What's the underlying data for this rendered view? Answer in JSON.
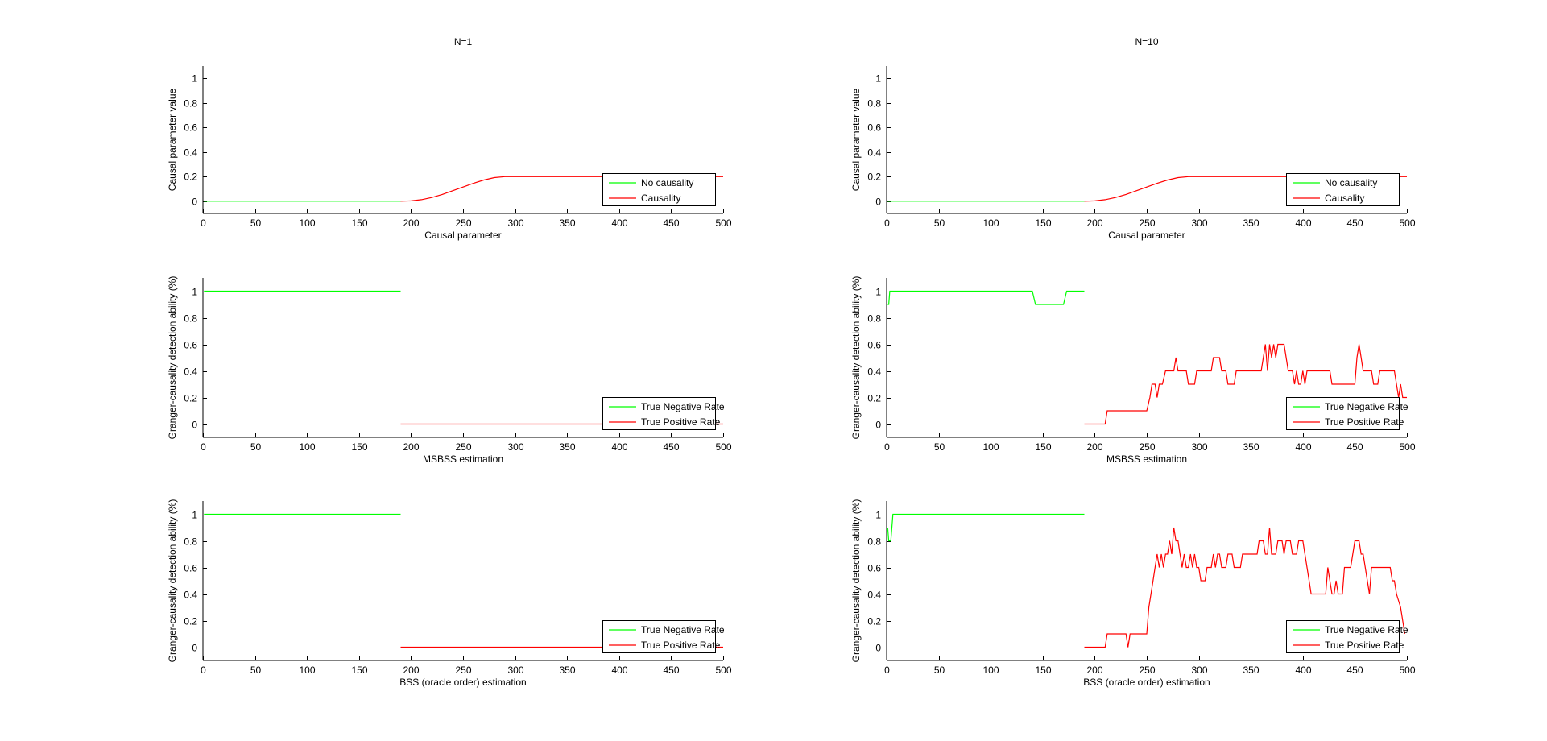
{
  "colors": {
    "green": "#00ff00",
    "red": "#ff0000",
    "axis": "#000000",
    "background": "#ffffff"
  },
  "chart_data": [
    {
      "id": "n1-causal",
      "type": "line",
      "title": "N=1",
      "xlabel": "Causal parameter",
      "ylabel": "Causal parameter value",
      "xlim": [
        0,
        500
      ],
      "ylim": [
        -0.1,
        1.1
      ],
      "xticks": [
        0,
        50,
        100,
        150,
        200,
        250,
        300,
        350,
        400,
        450,
        500
      ],
      "yticks": [
        0,
        0.2,
        0.4,
        0.6,
        0.8,
        1
      ],
      "legend_position": "bottom-right",
      "series": [
        {
          "name": "No causality",
          "color": "green",
          "points": [
            [
              1,
              0
            ],
            [
              190,
              0
            ]
          ]
        },
        {
          "name": "Causality",
          "color": "red",
          "points": [
            [
              190,
              0
            ],
            [
              200,
              0.002
            ],
            [
              210,
              0.012
            ],
            [
              220,
              0.03
            ],
            [
              230,
              0.055
            ],
            [
              240,
              0.085
            ],
            [
              250,
              0.115
            ],
            [
              260,
              0.145
            ],
            [
              270,
              0.172
            ],
            [
              280,
              0.192
            ],
            [
              290,
              0.2
            ],
            [
              500,
              0.2
            ]
          ]
        }
      ]
    },
    {
      "id": "n10-causal",
      "type": "line",
      "title": "N=10",
      "xlabel": "Causal parameter",
      "ylabel": "Causal parameter value",
      "xlim": [
        0,
        500
      ],
      "ylim": [
        -0.1,
        1.1
      ],
      "xticks": [
        0,
        50,
        100,
        150,
        200,
        250,
        300,
        350,
        400,
        450,
        500
      ],
      "yticks": [
        0,
        0.2,
        0.4,
        0.6,
        0.8,
        1
      ],
      "legend_position": "bottom-right",
      "series": [
        {
          "name": "No causality",
          "color": "green",
          "points": [
            [
              1,
              0
            ],
            [
              190,
              0
            ]
          ]
        },
        {
          "name": "Causality",
          "color": "red",
          "points": [
            [
              190,
              0
            ],
            [
              200,
              0.002
            ],
            [
              210,
              0.012
            ],
            [
              220,
              0.03
            ],
            [
              230,
              0.055
            ],
            [
              240,
              0.085
            ],
            [
              250,
              0.115
            ],
            [
              260,
              0.145
            ],
            [
              270,
              0.172
            ],
            [
              280,
              0.192
            ],
            [
              290,
              0.2
            ],
            [
              500,
              0.2
            ]
          ]
        }
      ]
    },
    {
      "id": "n1-msbss",
      "type": "line",
      "title": "",
      "xlabel": "MSBSS estimation",
      "ylabel": "Granger-causality detection ability (%)",
      "xlim": [
        0,
        500
      ],
      "ylim": [
        -0.1,
        1.1
      ],
      "xticks": [
        0,
        50,
        100,
        150,
        200,
        250,
        300,
        350,
        400,
        450,
        500
      ],
      "yticks": [
        0,
        0.2,
        0.4,
        0.6,
        0.8,
        1
      ],
      "legend_position": "bottom-right",
      "series": [
        {
          "name": "True Negative Rate",
          "color": "green",
          "points": [
            [
              1,
              1
            ],
            [
              190,
              1
            ]
          ]
        },
        {
          "name": "True Positive Rate",
          "color": "red",
          "points": [
            [
              190,
              0
            ],
            [
              500,
              0
            ]
          ]
        }
      ]
    },
    {
      "id": "n10-msbss",
      "type": "line",
      "title": "",
      "xlabel": "MSBSS estimation",
      "ylabel": "Granger-causality detection ability (%)",
      "xlim": [
        0,
        500
      ],
      "ylim": [
        -0.1,
        1.1
      ],
      "xticks": [
        0,
        50,
        100,
        150,
        200,
        250,
        300,
        350,
        400,
        450,
        500
      ],
      "yticks": [
        0,
        0.2,
        0.4,
        0.6,
        0.8,
        1
      ],
      "legend_position": "bottom-right",
      "series": [
        {
          "name": "True Negative Rate",
          "color": "green",
          "points": [
            [
              1,
              0.9
            ],
            [
              2,
              0.9
            ],
            [
              3,
              1
            ],
            [
              6,
              1
            ],
            [
              140,
              1
            ],
            [
              143,
              0.9
            ],
            [
              170,
              0.9
            ],
            [
              173,
              1
            ],
            [
              190,
              1
            ]
          ]
        },
        {
          "name": "True Positive Rate",
          "color": "red",
          "points": [
            [
              190,
              0
            ],
            [
              210,
              0
            ],
            [
              212,
              0.1
            ],
            [
              250,
              0.1
            ],
            [
              253,
              0.2
            ],
            [
              255,
              0.3
            ],
            [
              258,
              0.3
            ],
            [
              260,
              0.2
            ],
            [
              262,
              0.3
            ],
            [
              265,
              0.3
            ],
            [
              268,
              0.4
            ],
            [
              276,
              0.4
            ],
            [
              278,
              0.5
            ],
            [
              280,
              0.4
            ],
            [
              288,
              0.4
            ],
            [
              290,
              0.3
            ],
            [
              296,
              0.3
            ],
            [
              298,
              0.4
            ],
            [
              312,
              0.4
            ],
            [
              314,
              0.5
            ],
            [
              320,
              0.5
            ],
            [
              322,
              0.4
            ],
            [
              326,
              0.4
            ],
            [
              328,
              0.3
            ],
            [
              334,
              0.3
            ],
            [
              336,
              0.4
            ],
            [
              360,
              0.4
            ],
            [
              362,
              0.5
            ],
            [
              364,
              0.6
            ],
            [
              366,
              0.4
            ],
            [
              368,
              0.6
            ],
            [
              370,
              0.5
            ],
            [
              372,
              0.6
            ],
            [
              374,
              0.5
            ],
            [
              376,
              0.6
            ],
            [
              382,
              0.6
            ],
            [
              384,
              0.5
            ],
            [
              386,
              0.4
            ],
            [
              390,
              0.4
            ],
            [
              392,
              0.3
            ],
            [
              394,
              0.4
            ],
            [
              396,
              0.3
            ],
            [
              398,
              0.3
            ],
            [
              400,
              0.4
            ],
            [
              402,
              0.3
            ],
            [
              404,
              0.4
            ],
            [
              426,
              0.4
            ],
            [
              428,
              0.3
            ],
            [
              450,
              0.3
            ],
            [
              452,
              0.5
            ],
            [
              454,
              0.6
            ],
            [
              456,
              0.5
            ],
            [
              458,
              0.4
            ],
            [
              466,
              0.4
            ],
            [
              468,
              0.3
            ],
            [
              472,
              0.3
            ],
            [
              474,
              0.4
            ],
            [
              488,
              0.4
            ],
            [
              490,
              0.3
            ],
            [
              492,
              0.2
            ],
            [
              494,
              0.3
            ],
            [
              496,
              0.2
            ],
            [
              500,
              0.2
            ]
          ]
        }
      ]
    },
    {
      "id": "n1-bss",
      "type": "line",
      "title": "",
      "xlabel": "BSS (oracle order) estimation",
      "ylabel": "Granger-causality detection ability (%)",
      "xlim": [
        0,
        500
      ],
      "ylim": [
        -0.1,
        1.1
      ],
      "xticks": [
        0,
        50,
        100,
        150,
        200,
        250,
        300,
        350,
        400,
        450,
        500
      ],
      "yticks": [
        0,
        0.2,
        0.4,
        0.6,
        0.8,
        1
      ],
      "legend_position": "bottom-right",
      "series": [
        {
          "name": "True Negative Rate",
          "color": "green",
          "points": [
            [
              1,
              1
            ],
            [
              190,
              1
            ]
          ]
        },
        {
          "name": "True Positive Rate",
          "color": "red",
          "points": [
            [
              190,
              0
            ],
            [
              500,
              0
            ]
          ]
        }
      ]
    },
    {
      "id": "n10-bss",
      "type": "line",
      "title": "",
      "xlabel": "BSS (oracle order) estimation",
      "ylabel": "Granger-causality detection ability (%)",
      "xlim": [
        0,
        500
      ],
      "ylim": [
        -0.1,
        1.1
      ],
      "xticks": [
        0,
        50,
        100,
        150,
        200,
        250,
        300,
        350,
        400,
        450,
        500
      ],
      "yticks": [
        0,
        0.2,
        0.4,
        0.6,
        0.8,
        1
      ],
      "legend_position": "bottom-right",
      "series": [
        {
          "name": "True Negative Rate",
          "color": "green",
          "points": [
            [
              1,
              0.9
            ],
            [
              2,
              0.8
            ],
            [
              4,
              0.8
            ],
            [
              6,
              1
            ],
            [
              190,
              1
            ]
          ]
        },
        {
          "name": "True Positive Rate",
          "color": "red",
          "points": [
            [
              190,
              0
            ],
            [
              210,
              0
            ],
            [
              212,
              0.1
            ],
            [
              230,
              0.1
            ],
            [
              232,
              0
            ],
            [
              234,
              0.1
            ],
            [
              236,
              0.1
            ],
            [
              238,
              0.1
            ],
            [
              240,
              0.1
            ],
            [
              250,
              0.1
            ],
            [
              252,
              0.3
            ],
            [
              254,
              0.4
            ],
            [
              256,
              0.5
            ],
            [
              258,
              0.6
            ],
            [
              260,
              0.7
            ],
            [
              262,
              0.6
            ],
            [
              264,
              0.7
            ],
            [
              266,
              0.6
            ],
            [
              268,
              0.7
            ],
            [
              270,
              0.7
            ],
            [
              272,
              0.8
            ],
            [
              274,
              0.7
            ],
            [
              276,
              0.9
            ],
            [
              278,
              0.8
            ],
            [
              280,
              0.8
            ],
            [
              282,
              0.7
            ],
            [
              284,
              0.6
            ],
            [
              286,
              0.7
            ],
            [
              288,
              0.6
            ],
            [
              290,
              0.6
            ],
            [
              292,
              0.7
            ],
            [
              294,
              0.6
            ],
            [
              296,
              0.7
            ],
            [
              298,
              0.6
            ],
            [
              300,
              0.6
            ],
            [
              302,
              0.5
            ],
            [
              306,
              0.5
            ],
            [
              308,
              0.6
            ],
            [
              312,
              0.6
            ],
            [
              314,
              0.7
            ],
            [
              316,
              0.6
            ],
            [
              318,
              0.7
            ],
            [
              320,
              0.7
            ],
            [
              322,
              0.6
            ],
            [
              326,
              0.6
            ],
            [
              328,
              0.7
            ],
            [
              332,
              0.7
            ],
            [
              334,
              0.6
            ],
            [
              340,
              0.6
            ],
            [
              342,
              0.7
            ],
            [
              346,
              0.7
            ],
            [
              348,
              0.7
            ],
            [
              350,
              0.7
            ],
            [
              352,
              0.7
            ],
            [
              354,
              0.7
            ],
            [
              356,
              0.7
            ],
            [
              358,
              0.8
            ],
            [
              362,
              0.8
            ],
            [
              364,
              0.7
            ],
            [
              366,
              0.7
            ],
            [
              368,
              0.9
            ],
            [
              370,
              0.7
            ],
            [
              374,
              0.7
            ],
            [
              376,
              0.8
            ],
            [
              380,
              0.8
            ],
            [
              382,
              0.7
            ],
            [
              384,
              0.8
            ],
            [
              388,
              0.8
            ],
            [
              390,
              0.7
            ],
            [
              394,
              0.7
            ],
            [
              396,
              0.8
            ],
            [
              400,
              0.8
            ],
            [
              402,
              0.7
            ],
            [
              404,
              0.6
            ],
            [
              406,
              0.5
            ],
            [
              408,
              0.4
            ],
            [
              422,
              0.4
            ],
            [
              424,
              0.6
            ],
            [
              426,
              0.5
            ],
            [
              428,
              0.4
            ],
            [
              430,
              0.4
            ],
            [
              432,
              0.5
            ],
            [
              434,
              0.4
            ],
            [
              438,
              0.4
            ],
            [
              440,
              0.6
            ],
            [
              446,
              0.6
            ],
            [
              448,
              0.7
            ],
            [
              450,
              0.8
            ],
            [
              454,
              0.8
            ],
            [
              456,
              0.7
            ],
            [
              458,
              0.7
            ],
            [
              460,
              0.6
            ],
            [
              462,
              0.5
            ],
            [
              464,
              0.4
            ],
            [
              466,
              0.6
            ],
            [
              484,
              0.6
            ],
            [
              486,
              0.5
            ],
            [
              488,
              0.5
            ],
            [
              490,
              0.4
            ],
            [
              494,
              0.3
            ],
            [
              496,
              0.2
            ],
            [
              498,
              0.1
            ]
          ]
        }
      ]
    }
  ]
}
